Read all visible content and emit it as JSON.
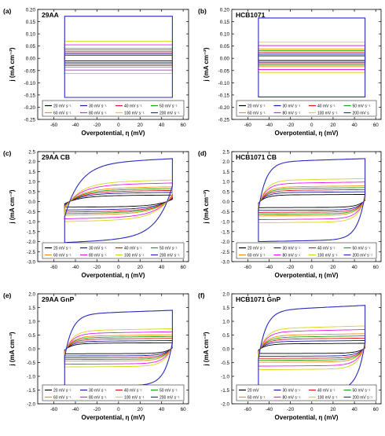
{
  "legend_colors": [
    "#000000",
    "#1a1aa6",
    "#e4121a",
    "#1aa01a",
    "#f08c1a",
    "#e81ce8",
    "#d6d61a",
    "#2a2abf"
  ],
  "panels": [
    {
      "tag": "(a)",
      "name": "29AA",
      "xlabel": "Overpotential, η (mV)",
      "ylabel": "j (mA cm⁻²)",
      "legend": [
        "20 mV s⁻¹",
        "30 mV s⁻¹",
        "40 mV s⁻¹",
        "50 mV s⁻¹",
        "60 mV s⁻¹",
        "80 mV s⁻¹",
        "100 mV s⁻¹",
        "200 mV s⁻¹"
      ],
      "chart_data": {
        "type": "line",
        "shape": "rect",
        "xlim": [
          -75,
          65
        ],
        "xticks": [
          -60,
          -40,
          -20,
          0,
          20,
          40,
          60
        ],
        "xrange": [
          -50,
          50
        ],
        "ylim": [
          -0.25,
          0.2
        ],
        "yticks": [
          -0.25,
          -0.2,
          -0.15,
          -0.1,
          -0.05,
          0.0,
          0.05,
          0.1,
          0.15,
          0.2
        ],
        "ydec": 2,
        "series": [
          {
            "top": 0.013,
            "bot": -0.011
          },
          {
            "top": 0.02,
            "bot": -0.018
          },
          {
            "top": 0.027,
            "bot": -0.024
          },
          {
            "top": 0.034,
            "bot": -0.03
          },
          {
            "top": 0.041,
            "bot": -0.036
          },
          {
            "top": 0.055,
            "bot": -0.048
          },
          {
            "top": 0.07,
            "bot": -0.062
          },
          {
            "top": 0.172,
            "bot": -0.16
          }
        ]
      }
    },
    {
      "tag": "(b)",
      "name": "HCB1071",
      "xlabel": "Overpotential, η (mV)",
      "ylabel": "j (mA cm⁻²)",
      "legend": [
        "20 mV s⁻¹",
        "30 mV s⁻¹",
        "40 mV s⁻¹",
        "50 mV s⁻¹",
        "60 mV s⁻¹",
        "80 mV s⁻¹",
        "100 mV s⁻¹",
        "200 mV s"
      ],
      "chart_data": {
        "type": "line",
        "shape": "rect",
        "xlim": [
          -75,
          65
        ],
        "xticks": [
          -60,
          -40,
          -20,
          0,
          20,
          40,
          60
        ],
        "xrange": [
          -50,
          50
        ],
        "ylim": [
          -0.25,
          0.2
        ],
        "yticks": [
          -0.25,
          -0.2,
          -0.15,
          -0.1,
          -0.05,
          0.0,
          0.05,
          0.1,
          0.15,
          0.2
        ],
        "ydec": 2,
        "series": [
          {
            "top": 0.01,
            "bot": -0.009
          },
          {
            "top": 0.017,
            "bot": -0.016
          },
          {
            "top": 0.024,
            "bot": -0.022
          },
          {
            "top": 0.031,
            "bot": -0.028
          },
          {
            "top": 0.038,
            "bot": -0.034
          },
          {
            "top": 0.052,
            "bot": -0.046
          },
          {
            "top": 0.066,
            "bot": -0.058
          },
          {
            "top": 0.165,
            "bot": -0.158
          }
        ]
      }
    },
    {
      "tag": "(c)",
      "name": "29AA CB",
      "xlabel": "Overpotential, η (mV)",
      "ylabel": "j (mA cm⁻²)",
      "legend": [
        "20 mV s⁻¹",
        "30 mV s⁻¹",
        "40 mV s⁻¹",
        "50 mV s⁻¹",
        "60 mV s⁻¹",
        "80 mV s⁻¹",
        "100 mV s⁻¹",
        "200 mV s⁻¹"
      ],
      "chart_data": {
        "type": "line",
        "shape": "curve",
        "xlim": [
          -75,
          65
        ],
        "xticks": [
          -60,
          -40,
          -20,
          0,
          20,
          40,
          60
        ],
        "xrange": [
          -50,
          50
        ],
        "ylim": [
          -3.0,
          2.5
        ],
        "yticks": [
          -3.0,
          -2.5,
          -2.0,
          -1.5,
          -1.0,
          -0.5,
          0.0,
          0.5,
          1.0,
          1.5,
          2.0,
          2.5
        ],
        "ydec": 1,
        "series": [
          {
            "top": 0.33,
            "bot": -0.28,
            "a": -0.12,
            "b": -0.12
          },
          {
            "top": 0.46,
            "bot": -0.42,
            "a": -0.12,
            "b": -0.12
          },
          {
            "top": 0.56,
            "bot": -0.52,
            "a": -0.12,
            "b": -0.12
          },
          {
            "top": 0.65,
            "bot": -0.6,
            "a": -0.12,
            "b": -0.12
          },
          {
            "top": 0.74,
            "bot": -0.68,
            "a": -0.12,
            "b": -0.12
          },
          {
            "top": 0.93,
            "bot": -0.86,
            "a": -0.12,
            "b": -0.12
          },
          {
            "top": 1.08,
            "bot": -1.0,
            "a": -0.12,
            "b": -0.12
          },
          {
            "top": 2.15,
            "bot": -2.05,
            "a": -0.12,
            "b": -0.12
          }
        ]
      }
    },
    {
      "tag": "(d)",
      "name": "HCB1071 CB",
      "xlabel": "Overpotential, η (mV)",
      "ylabel": "j (mA cm⁻²)",
      "legend": [
        "20 mV s⁻¹",
        "30 mV s⁻¹",
        "40 mV s⁻¹",
        "50 mV s⁻¹",
        "60 mV s⁻¹",
        "80 mV s⁻¹",
        "100 mV s⁻¹",
        "200 mV s⁻¹"
      ],
      "chart_data": {
        "type": "line",
        "shape": "box",
        "xlim": [
          -75,
          65
        ],
        "xticks": [
          -60,
          -40,
          -20,
          0,
          20,
          40,
          60
        ],
        "xrange": [
          -50,
          50
        ],
        "ylim": [
          -3.0,
          2.5
        ],
        "yticks": [
          -3.0,
          -2.5,
          -2.0,
          -1.5,
          -1.0,
          -0.5,
          0.0,
          0.5,
          1.0,
          1.5,
          2.0,
          2.5
        ],
        "ydec": 1,
        "series": [
          {
            "top": 0.36,
            "bot": -0.3,
            "a": -0.08,
            "b": -0.05
          },
          {
            "top": 0.49,
            "bot": -0.44,
            "a": -0.08,
            "b": -0.05
          },
          {
            "top": 0.6,
            "bot": -0.54,
            "a": -0.08,
            "b": -0.05
          },
          {
            "top": 0.7,
            "bot": -0.63,
            "a": -0.08,
            "b": -0.05
          },
          {
            "top": 0.79,
            "bot": -0.71,
            "a": -0.08,
            "b": -0.05
          },
          {
            "top": 0.98,
            "bot": -0.9,
            "a": -0.08,
            "b": -0.05
          },
          {
            "top": 1.15,
            "bot": -1.06,
            "a": -0.08,
            "b": -0.05
          },
          {
            "top": 2.15,
            "bot": -2.0,
            "a": -0.08,
            "b": -0.05
          }
        ]
      }
    },
    {
      "tag": "(e)",
      "name": "29AA GnP",
      "xlabel": "Overpotential, η (mV)",
      "ylabel": "j (mA cm⁻²)",
      "legend": [
        "20 mV s⁻¹",
        "30 mV s⁻¹",
        "40 mV s⁻¹",
        "50 mV s⁻¹",
        "60 mV s⁻¹",
        "80 mV s⁻¹",
        "100 mV s⁻¹",
        "200 mV s⁻¹"
      ],
      "chart_data": {
        "type": "line",
        "shape": "box",
        "xlim": [
          -75,
          65
        ],
        "xticks": [
          -60,
          -40,
          -20,
          0,
          20,
          40,
          60
        ],
        "xrange": [
          -50,
          50
        ],
        "ylim": [
          -2.0,
          2.0
        ],
        "yticks": [
          -2.0,
          -1.5,
          -1.0,
          -0.5,
          0.0,
          0.5,
          1.0,
          1.5,
          2.0
        ],
        "ydec": 1,
        "series": [
          {
            "top": 0.22,
            "bot": -0.18,
            "a": -0.1,
            "b": -0.04
          },
          {
            "top": 0.3,
            "bot": -0.26,
            "a": -0.1,
            "b": -0.04
          },
          {
            "top": 0.38,
            "bot": -0.33,
            "a": -0.1,
            "b": -0.04
          },
          {
            "top": 0.45,
            "bot": -0.39,
            "a": -0.1,
            "b": -0.04
          },
          {
            "top": 0.51,
            "bot": -0.45,
            "a": -0.1,
            "b": -0.04
          },
          {
            "top": 0.62,
            "bot": -0.56,
            "a": -0.1,
            "b": -0.04
          },
          {
            "top": 0.73,
            "bot": -0.66,
            "a": -0.1,
            "b": -0.04
          },
          {
            "top": 1.4,
            "bot": -1.38,
            "a": -0.1,
            "b": -0.04
          }
        ]
      }
    },
    {
      "tag": "(f)",
      "name": "HCB1071 GnP",
      "xlabel": "Overpotential, η (mV)",
      "ylabel": "j (mA cm⁻²)",
      "legend": [
        "20 mV",
        "30 mV s⁻¹",
        "40 mV s⁻¹",
        "50 mV s⁻¹",
        "60 mV s⁻¹",
        "80 mV s⁻¹",
        "100 mV s⁻¹",
        "200 mV s⁻¹"
      ],
      "chart_data": {
        "type": "line",
        "shape": "box",
        "xlim": [
          -75,
          65
        ],
        "xticks": [
          -60,
          -40,
          -20,
          0,
          20,
          40,
          60
        ],
        "xrange": [
          -50,
          50
        ],
        "ylim": [
          -2.0,
          2.0
        ],
        "yticks": [
          -2.0,
          -1.5,
          -1.0,
          -0.5,
          0.0,
          0.5,
          1.0,
          1.5,
          2.0
        ],
        "ydec": 1,
        "series": [
          {
            "top": 0.2,
            "bot": -0.17,
            "a": -0.12,
            "b": -0.04
          },
          {
            "top": 0.3,
            "bot": -0.27,
            "a": -0.12,
            "b": -0.04
          },
          {
            "top": 0.39,
            "bot": -0.35,
            "a": -0.12,
            "b": -0.04
          },
          {
            "top": 0.47,
            "bot": -0.42,
            "a": -0.12,
            "b": -0.04
          },
          {
            "top": 0.55,
            "bot": -0.49,
            "a": -0.12,
            "b": -0.04
          },
          {
            "top": 0.7,
            "bot": -0.63,
            "a": -0.12,
            "b": -0.04
          },
          {
            "top": 0.83,
            "bot": -0.76,
            "a": -0.12,
            "b": -0.04
          },
          {
            "top": 1.58,
            "bot": -1.58,
            "a": -0.12,
            "b": -0.04
          }
        ]
      }
    }
  ]
}
